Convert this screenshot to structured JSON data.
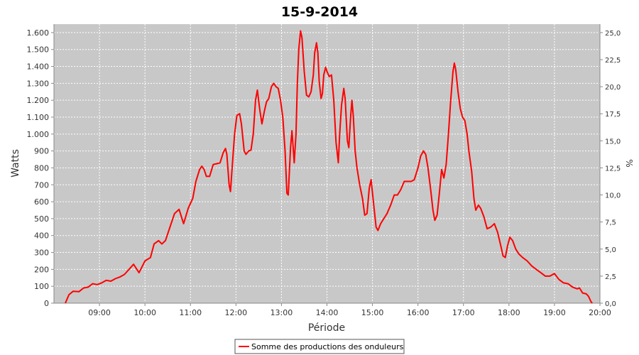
{
  "chart_data": {
    "type": "line",
    "title": "15-9-2014",
    "xlabel": "Période",
    "ylabel": "Watts",
    "y2label": "%",
    "xlim": [
      8.0,
      20.0
    ],
    "ylim": [
      0,
      1650
    ],
    "y2lim": [
      0,
      25.78
    ],
    "x_ticks": [
      {
        "v": 9,
        "label": "09:00"
      },
      {
        "v": 10,
        "label": "10:00"
      },
      {
        "v": 11,
        "label": "11:00"
      },
      {
        "v": 12,
        "label": "12:00"
      },
      {
        "v": 13,
        "label": "13:00"
      },
      {
        "v": 14,
        "label": "14:00"
      },
      {
        "v": 15,
        "label": "15:00"
      },
      {
        "v": 16,
        "label": "16:00"
      },
      {
        "v": 17,
        "label": "17:00"
      },
      {
        "v": 18,
        "label": "18:00"
      },
      {
        "v": 19,
        "label": "19:00"
      },
      {
        "v": 20,
        "label": "20:00"
      }
    ],
    "y_ticks": [
      {
        "v": 0,
        "label": "0"
      },
      {
        "v": 100,
        "label": "100"
      },
      {
        "v": 200,
        "label": "200"
      },
      {
        "v": 300,
        "label": "300"
      },
      {
        "v": 400,
        "label": "400"
      },
      {
        "v": 500,
        "label": "500"
      },
      {
        "v": 600,
        "label": "600"
      },
      {
        "v": 700,
        "label": "700"
      },
      {
        "v": 800,
        "label": "800"
      },
      {
        "v": 900,
        "label": "900"
      },
      {
        "v": 1000,
        "label": "1.000"
      },
      {
        "v": 1100,
        "label": "1.100"
      },
      {
        "v": 1200,
        "label": "1.200"
      },
      {
        "v": 1300,
        "label": "1.300"
      },
      {
        "v": 1400,
        "label": "1.400"
      },
      {
        "v": 1500,
        "label": "1.500"
      },
      {
        "v": 1600,
        "label": "1.600"
      }
    ],
    "y2_ticks": [
      {
        "v": 0,
        "label": "0,0"
      },
      {
        "v": 2.5,
        "label": "2,5"
      },
      {
        "v": 5,
        "label": "5,0"
      },
      {
        "v": 7.5,
        "label": "7,5"
      },
      {
        "v": 10,
        "label": "10,0"
      },
      {
        "v": 12.5,
        "label": "12,5"
      },
      {
        "v": 15,
        "label": "15,0"
      },
      {
        "v": 17.5,
        "label": "17,5"
      },
      {
        "v": 20,
        "label": "20,0"
      },
      {
        "v": 22.5,
        "label": "22,5"
      },
      {
        "v": 25,
        "label": "25,0"
      }
    ],
    "grid": true,
    "legend_position": "bottom",
    "series": [
      {
        "name": "Somme des productions des onduleurs",
        "color": "#ff0000",
        "points": [
          [
            8.25,
            0
          ],
          [
            8.33,
            50
          ],
          [
            8.42,
            70
          ],
          [
            8.55,
            68
          ],
          [
            8.65,
            90
          ],
          [
            8.75,
            95
          ],
          [
            8.85,
            115
          ],
          [
            8.95,
            110
          ],
          [
            9.05,
            120
          ],
          [
            9.15,
            135
          ],
          [
            9.25,
            130
          ],
          [
            9.35,
            145
          ],
          [
            9.45,
            155
          ],
          [
            9.55,
            170
          ],
          [
            9.65,
            200
          ],
          [
            9.75,
            230
          ],
          [
            9.87,
            180
          ],
          [
            10.0,
            250
          ],
          [
            10.12,
            270
          ],
          [
            10.2,
            350
          ],
          [
            10.3,
            370
          ],
          [
            10.37,
            350
          ],
          [
            10.45,
            370
          ],
          [
            10.55,
            450
          ],
          [
            10.65,
            530
          ],
          [
            10.75,
            555
          ],
          [
            10.85,
            470
          ],
          [
            10.95,
            560
          ],
          [
            11.05,
            620
          ],
          [
            11.12,
            720
          ],
          [
            11.2,
            790
          ],
          [
            11.25,
            810
          ],
          [
            11.3,
            790
          ],
          [
            11.35,
            750
          ],
          [
            11.42,
            750
          ],
          [
            11.5,
            820
          ],
          [
            11.58,
            825
          ],
          [
            11.65,
            830
          ],
          [
            11.72,
            890
          ],
          [
            11.77,
            915
          ],
          [
            11.8,
            880
          ],
          [
            11.85,
            700
          ],
          [
            11.88,
            660
          ],
          [
            11.93,
            850
          ],
          [
            11.97,
            1000
          ],
          [
            12.02,
            1110
          ],
          [
            12.08,
            1120
          ],
          [
            12.12,
            1060
          ],
          [
            12.18,
            900
          ],
          [
            12.22,
            880
          ],
          [
            12.28,
            900
          ],
          [
            12.33,
            905
          ],
          [
            12.38,
            1000
          ],
          [
            12.43,
            1200
          ],
          [
            12.47,
            1260
          ],
          [
            12.52,
            1150
          ],
          [
            12.57,
            1060
          ],
          [
            12.62,
            1130
          ],
          [
            12.67,
            1190
          ],
          [
            12.72,
            1210
          ],
          [
            12.78,
            1280
          ],
          [
            12.83,
            1300
          ],
          [
            12.88,
            1280
          ],
          [
            12.93,
            1270
          ],
          [
            12.98,
            1200
          ],
          [
            13.03,
            1100
          ],
          [
            13.08,
            900
          ],
          [
            13.12,
            650
          ],
          [
            13.15,
            640
          ],
          [
            13.2,
            920
          ],
          [
            13.23,
            1020
          ],
          [
            13.25,
            950
          ],
          [
            13.28,
            830
          ],
          [
            13.32,
            1000
          ],
          [
            13.35,
            1300
          ],
          [
            13.38,
            1500
          ],
          [
            13.42,
            1610
          ],
          [
            13.45,
            1570
          ],
          [
            13.5,
            1370
          ],
          [
            13.55,
            1230
          ],
          [
            13.6,
            1220
          ],
          [
            13.65,
            1250
          ],
          [
            13.7,
            1350
          ],
          [
            13.73,
            1480
          ],
          [
            13.77,
            1540
          ],
          [
            13.8,
            1480
          ],
          [
            13.83,
            1310
          ],
          [
            13.87,
            1210
          ],
          [
            13.9,
            1240
          ],
          [
            13.93,
            1350
          ],
          [
            13.97,
            1395
          ],
          [
            14.0,
            1370
          ],
          [
            14.05,
            1340
          ],
          [
            14.1,
            1350
          ],
          [
            14.15,
            1200
          ],
          [
            14.2,
            950
          ],
          [
            14.25,
            830
          ],
          [
            14.28,
            1000
          ],
          [
            14.32,
            1170
          ],
          [
            14.37,
            1270
          ],
          [
            14.4,
            1210
          ],
          [
            14.45,
            960
          ],
          [
            14.48,
            920
          ],
          [
            14.52,
            1100
          ],
          [
            14.55,
            1200
          ],
          [
            14.58,
            1100
          ],
          [
            14.62,
            900
          ],
          [
            14.66,
            800
          ],
          [
            14.72,
            700
          ],
          [
            14.78,
            620
          ],
          [
            14.83,
            520
          ],
          [
            14.88,
            530
          ],
          [
            14.93,
            680
          ],
          [
            14.97,
            730
          ],
          [
            15.02,
            600
          ],
          [
            15.08,
            450
          ],
          [
            15.12,
            430
          ],
          [
            15.18,
            470
          ],
          [
            15.25,
            500
          ],
          [
            15.32,
            530
          ],
          [
            15.4,
            580
          ],
          [
            15.48,
            640
          ],
          [
            15.55,
            640
          ],
          [
            15.62,
            670
          ],
          [
            15.7,
            720
          ],
          [
            15.78,
            720
          ],
          [
            15.85,
            720
          ],
          [
            15.92,
            730
          ],
          [
            16.0,
            800
          ],
          [
            16.06,
            870
          ],
          [
            16.12,
            900
          ],
          [
            16.17,
            880
          ],
          [
            16.22,
            800
          ],
          [
            16.28,
            670
          ],
          [
            16.33,
            550
          ],
          [
            16.37,
            490
          ],
          [
            16.42,
            520
          ],
          [
            16.47,
            650
          ],
          [
            16.52,
            790
          ],
          [
            16.57,
            740
          ],
          [
            16.62,
            820
          ],
          [
            16.67,
            1000
          ],
          [
            16.72,
            1200
          ],
          [
            16.77,
            1370
          ],
          [
            16.8,
            1420
          ],
          [
            16.83,
            1380
          ],
          [
            16.88,
            1250
          ],
          [
            16.93,
            1150
          ],
          [
            16.98,
            1100
          ],
          [
            17.03,
            1080
          ],
          [
            17.08,
            1000
          ],
          [
            17.12,
            900
          ],
          [
            17.18,
            780
          ],
          [
            17.23,
            620
          ],
          [
            17.27,
            550
          ],
          [
            17.33,
            580
          ],
          [
            17.38,
            560
          ],
          [
            17.45,
            510
          ],
          [
            17.52,
            440
          ],
          [
            17.6,
            450
          ],
          [
            17.68,
            470
          ],
          [
            17.75,
            420
          ],
          [
            17.82,
            340
          ],
          [
            17.87,
            280
          ],
          [
            17.92,
            270
          ],
          [
            17.97,
            340
          ],
          [
            18.02,
            390
          ],
          [
            18.08,
            370
          ],
          [
            18.15,
            320
          ],
          [
            18.22,
            290
          ],
          [
            18.3,
            270
          ],
          [
            18.4,
            250
          ],
          [
            18.5,
            220
          ],
          [
            18.6,
            200
          ],
          [
            18.7,
            180
          ],
          [
            18.8,
            160
          ],
          [
            18.9,
            160
          ],
          [
            19.0,
            175
          ],
          [
            19.1,
            140
          ],
          [
            19.2,
            120
          ],
          [
            19.3,
            115
          ],
          [
            19.4,
            95
          ],
          [
            19.5,
            85
          ],
          [
            19.55,
            90
          ],
          [
            19.62,
            60
          ],
          [
            19.7,
            55
          ],
          [
            19.75,
            40
          ],
          [
            19.8,
            10
          ],
          [
            19.83,
            0
          ]
        ]
      }
    ]
  }
}
